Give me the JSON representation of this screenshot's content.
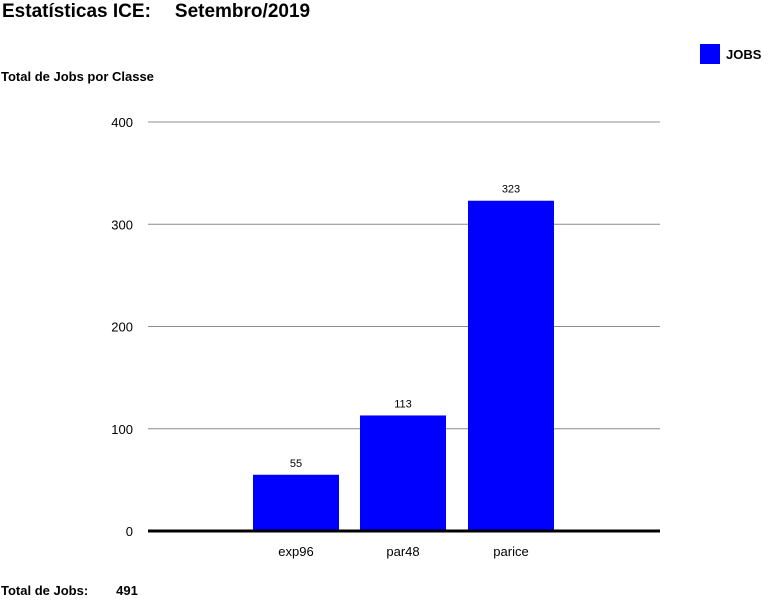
{
  "header": {
    "title": "Estatísticas ICE:",
    "period": "Setembro/2019"
  },
  "chart_title": "Total de Jobs por Classe",
  "legend": {
    "label": "JOBS",
    "color": "#0000ff"
  },
  "footer": {
    "total_label": "Total de Jobs:",
    "total_value": "491"
  },
  "chart_data": {
    "type": "bar",
    "title": "Total de Jobs por Classe",
    "categories": [
      "exp96",
      "par48",
      "parice"
    ],
    "series": [
      {
        "name": "JOBS",
        "color": "#0000ff",
        "values": [
          55,
          113,
          323
        ]
      }
    ],
    "ylim": [
      0,
      400
    ],
    "yticks": [
      0,
      100,
      200,
      300,
      400
    ],
    "grid": true,
    "legend_position": "top-right",
    "xlabel": "",
    "ylabel": ""
  }
}
